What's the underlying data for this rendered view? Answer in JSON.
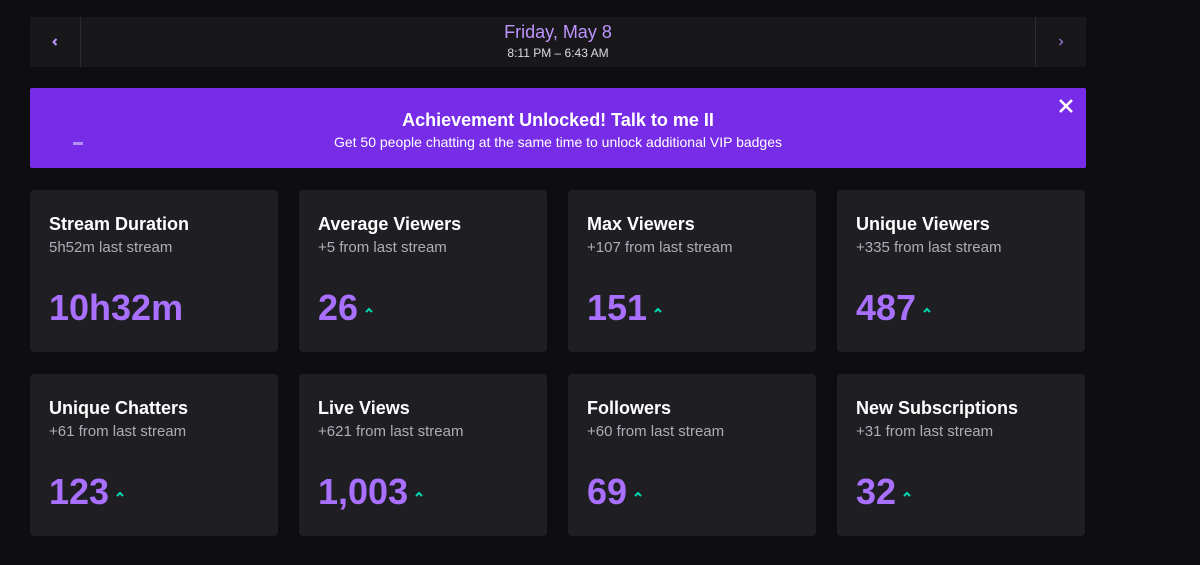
{
  "header": {
    "title": "Friday, May 8",
    "subtitle": "8:11 PM – 6:43 AM"
  },
  "banner": {
    "title": "Achievement Unlocked! Talk to me II",
    "subtitle": "Get 50 people chatting at the same time to unlock additional VIP badges"
  },
  "cards": [
    {
      "title": "Stream Duration",
      "subtitle": "5h52m last stream",
      "value": "10h32m"
    },
    {
      "title": "Average Viewers",
      "subtitle": "+5 from last stream",
      "value": "26"
    },
    {
      "title": "Max Viewers",
      "subtitle": "+107 from last stream",
      "value": "151"
    },
    {
      "title": "Unique Viewers",
      "subtitle": "+335 from last stream",
      "value": "487"
    },
    {
      "title": "Unique Chatters",
      "subtitle": "+61 from last stream",
      "value": "123"
    },
    {
      "title": "Live Views",
      "subtitle": "+621 from last stream",
      "value": "1,003"
    },
    {
      "title": "Followers",
      "subtitle": "+60 from last stream",
      "value": "69"
    },
    {
      "title": "New Subscriptions",
      "subtitle": "+31 from last stream",
      "value": "32"
    }
  ]
}
